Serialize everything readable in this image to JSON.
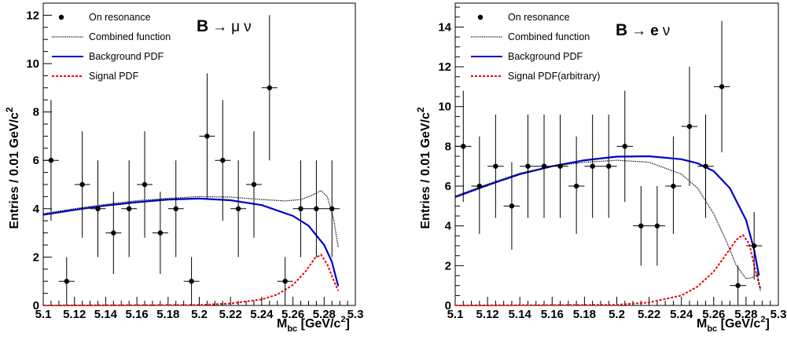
{
  "chart_data": [
    {
      "type": "scatter",
      "name": "B-to-mu-nu",
      "decay_text": "B → μ ν",
      "decay_parts": [
        "B",
        "→",
        "μ",
        "ν"
      ],
      "xlabel": "M_bc [GeV/c²]",
      "xlabel_parts": {
        "main": "M",
        "sub": "bc",
        "rest": " [GeV/c",
        "sup": "2",
        "close": "]"
      },
      "ylabel": "Entries / 0.01 GeV/c²",
      "ylabel_parts": {
        "main": "Entries / 0.01 GeV/c",
        "sup": "2"
      },
      "xlim": [
        5.1,
        5.3
      ],
      "ylim": [
        0,
        12.5
      ],
      "xticks": [
        5.1,
        5.12,
        5.14,
        5.16,
        5.18,
        5.2,
        5.22,
        5.24,
        5.26,
        5.28,
        5.3
      ],
      "yticks": [
        0,
        2,
        4,
        6,
        8,
        10,
        12
      ],
      "legend_position": "top-left",
      "legend": [
        {
          "label": "On resonance",
          "style": "marker"
        },
        {
          "label": "Combined function",
          "style": "dotted",
          "color": "#000000"
        },
        {
          "label": "Background PDF",
          "style": "solid",
          "color": "#0000cc"
        },
        {
          "label": "Signal PDF",
          "style": "dashed",
          "color": "#ee0000"
        }
      ],
      "points": [
        {
          "x": 5.105,
          "y": 6,
          "ylo": 3.5,
          "yhi": 8.5
        },
        {
          "x": 5.115,
          "y": 1,
          "ylo": 0.2,
          "yhi": 2.0
        },
        {
          "x": 5.125,
          "y": 5,
          "ylo": 2.8,
          "yhi": 7.2
        },
        {
          "x": 5.135,
          "y": 4,
          "ylo": 2.0,
          "yhi": 6.0
        },
        {
          "x": 5.145,
          "y": 3,
          "ylo": 1.3,
          "yhi": 4.7
        },
        {
          "x": 5.155,
          "y": 4,
          "ylo": 2.0,
          "yhi": 6.0
        },
        {
          "x": 5.165,
          "y": 5,
          "ylo": 2.8,
          "yhi": 7.2
        },
        {
          "x": 5.175,
          "y": 3,
          "ylo": 1.3,
          "yhi": 4.7
        },
        {
          "x": 5.185,
          "y": 4,
          "ylo": 2.0,
          "yhi": 6.0
        },
        {
          "x": 5.195,
          "y": 1,
          "ylo": 0.2,
          "yhi": 2.0
        },
        {
          "x": 5.205,
          "y": 7,
          "ylo": 4.4,
          "yhi": 9.6
        },
        {
          "x": 5.215,
          "y": 6,
          "ylo": 3.5,
          "yhi": 8.5
        },
        {
          "x": 5.225,
          "y": 4,
          "ylo": 2.0,
          "yhi": 6.0
        },
        {
          "x": 5.235,
          "y": 5,
          "ylo": 2.8,
          "yhi": 7.2
        },
        {
          "x": 5.245,
          "y": 9,
          "ylo": 6.0,
          "yhi": 12.0
        },
        {
          "x": 5.255,
          "y": 1,
          "ylo": 0.2,
          "yhi": 2.0
        },
        {
          "x": 5.265,
          "y": 4,
          "ylo": 2.0,
          "yhi": 6.0
        },
        {
          "x": 5.275,
          "y": 4,
          "ylo": 2.0,
          "yhi": 6.0
        },
        {
          "x": 5.285,
          "y": 4,
          "ylo": 2.0,
          "yhi": 6.0
        }
      ],
      "curves": {
        "background": {
          "x": [
            5.1,
            5.12,
            5.14,
            5.16,
            5.18,
            5.2,
            5.22,
            5.24,
            5.26,
            5.27,
            5.28,
            5.285,
            5.289
          ],
          "y": [
            3.75,
            3.95,
            4.13,
            4.27,
            4.38,
            4.42,
            4.35,
            4.15,
            3.7,
            3.3,
            2.5,
            1.8,
            0.8
          ]
        },
        "combined": {
          "x": [
            5.1,
            5.12,
            5.14,
            5.16,
            5.18,
            5.2,
            5.22,
            5.24,
            5.255,
            5.265,
            5.272,
            5.278,
            5.282,
            5.286,
            5.289
          ],
          "y": [
            3.8,
            4.0,
            4.18,
            4.33,
            4.43,
            4.5,
            4.48,
            4.38,
            4.32,
            4.38,
            4.55,
            4.75,
            4.5,
            3.6,
            2.4
          ]
        },
        "signal": {
          "x": [
            5.1,
            5.2,
            5.22,
            5.24,
            5.25,
            5.26,
            5.268,
            5.274,
            5.278,
            5.282,
            5.286,
            5.289
          ],
          "y": [
            0,
            0.02,
            0.08,
            0.25,
            0.45,
            0.85,
            1.4,
            1.95,
            2.1,
            1.7,
            1.05,
            0.6
          ]
        }
      }
    },
    {
      "type": "scatter",
      "name": "B-to-e-nu",
      "decay_text": "B → e ν",
      "decay_parts": [
        "B",
        "→",
        "e",
        "ν"
      ],
      "xlabel": "M_bc [GeV/c²]",
      "xlabel_parts": {
        "main": "M",
        "sub": "bc",
        "rest": " [GeV/c",
        "sup": "2",
        "close": "]"
      },
      "ylabel": "Entries / 0.01 GeV/c²",
      "ylabel_parts": {
        "main": "Entries / 0.01 GeV/c",
        "sup": "2"
      },
      "xlim": [
        5.1,
        5.3
      ],
      "ylim": [
        0,
        15.2
      ],
      "xticks": [
        5.1,
        5.12,
        5.14,
        5.16,
        5.18,
        5.2,
        5.22,
        5.24,
        5.26,
        5.28,
        5.3
      ],
      "yticks": [
        0,
        2,
        4,
        6,
        8,
        10,
        12,
        14
      ],
      "legend_position": "top-left",
      "legend": [
        {
          "label": "On resonance",
          "style": "marker"
        },
        {
          "label": "Combined function",
          "style": "dotted",
          "color": "#000000"
        },
        {
          "label": "Background PDF",
          "style": "solid",
          "color": "#0000cc"
        },
        {
          "label": "Signal PDF(arbitrary)",
          "style": "dashed",
          "color": "#ee0000"
        }
      ],
      "points": [
        {
          "x": 5.105,
          "y": 8,
          "ylo": 5.2,
          "yhi": 10.8
        },
        {
          "x": 5.115,
          "y": 6,
          "ylo": 3.6,
          "yhi": 8.5
        },
        {
          "x": 5.125,
          "y": 7,
          "ylo": 4.4,
          "yhi": 9.6
        },
        {
          "x": 5.135,
          "y": 5,
          "ylo": 2.8,
          "yhi": 7.2
        },
        {
          "x": 5.145,
          "y": 7,
          "ylo": 4.4,
          "yhi": 9.6
        },
        {
          "x": 5.155,
          "y": 7,
          "ylo": 4.4,
          "yhi": 9.6
        },
        {
          "x": 5.165,
          "y": 7,
          "ylo": 4.4,
          "yhi": 9.6
        },
        {
          "x": 5.175,
          "y": 6,
          "ylo": 3.6,
          "yhi": 8.5
        },
        {
          "x": 5.185,
          "y": 7,
          "ylo": 4.4,
          "yhi": 9.6
        },
        {
          "x": 5.195,
          "y": 7,
          "ylo": 4.4,
          "yhi": 9.6
        },
        {
          "x": 5.205,
          "y": 8,
          "ylo": 5.2,
          "yhi": 10.8
        },
        {
          "x": 5.215,
          "y": 4,
          "ylo": 2.0,
          "yhi": 6.0
        },
        {
          "x": 5.225,
          "y": 4,
          "ylo": 2.0,
          "yhi": 6.0
        },
        {
          "x": 5.235,
          "y": 6,
          "ylo": 3.6,
          "yhi": 8.5
        },
        {
          "x": 5.245,
          "y": 9,
          "ylo": 6.0,
          "yhi": 12.0
        },
        {
          "x": 5.255,
          "y": 7,
          "ylo": 4.4,
          "yhi": 9.6
        },
        {
          "x": 5.265,
          "y": 11,
          "ylo": 7.7,
          "yhi": 14.3
        },
        {
          "x": 5.275,
          "y": 1,
          "ylo": 0.2,
          "yhi": 2.0
        },
        {
          "x": 5.285,
          "y": 3,
          "ylo": 1.3,
          "yhi": 4.7
        }
      ],
      "curves": {
        "background": {
          "x": [
            5.1,
            5.12,
            5.14,
            5.16,
            5.18,
            5.2,
            5.22,
            5.24,
            5.25,
            5.26,
            5.27,
            5.28,
            5.285,
            5.288
          ],
          "y": [
            5.45,
            6.05,
            6.6,
            7.0,
            7.3,
            7.48,
            7.5,
            7.35,
            7.15,
            6.75,
            5.9,
            4.3,
            2.8,
            1.5
          ]
        },
        "combined": {
          "x": [
            5.1,
            5.12,
            5.14,
            5.16,
            5.18,
            5.2,
            5.22,
            5.24,
            5.25,
            5.26,
            5.268,
            5.274,
            5.28,
            5.284,
            5.287,
            5.289
          ],
          "y": [
            5.5,
            6.1,
            6.65,
            7.0,
            7.2,
            7.3,
            7.2,
            6.6,
            5.9,
            4.6,
            3.2,
            2.0,
            1.35,
            1.4,
            1.6,
            0.7
          ]
        },
        "signal": {
          "x": [
            5.1,
            5.2,
            5.22,
            5.24,
            5.25,
            5.26,
            5.268,
            5.274,
            5.278,
            5.282,
            5.286,
            5.289
          ],
          "y": [
            0,
            0.03,
            0.15,
            0.5,
            0.95,
            1.7,
            2.6,
            3.3,
            3.55,
            3.1,
            1.7,
            0.8
          ]
        }
      }
    }
  ]
}
